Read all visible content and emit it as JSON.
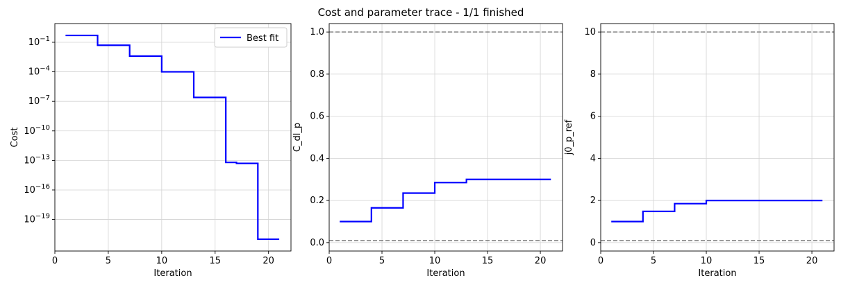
{
  "figure_title": "Cost and parameter trace - 1/1 finished",
  "chart_data": [
    {
      "type": "line",
      "step": true,
      "xlabel": "Iteration",
      "ylabel": "Cost",
      "yscale": "log",
      "xlim": [
        0,
        22.1
      ],
      "ylim_log10": [
        -22.2,
        0.9
      ],
      "xticks": [
        0,
        5,
        10,
        15,
        20
      ],
      "yticks_log10": [
        -1,
        -4,
        -7,
        -10,
        -13,
        -16,
        -19
      ],
      "grid": true,
      "legend": {
        "placement": "top-right",
        "entries": [
          "Best fit"
        ]
      },
      "series": [
        {
          "name": "Best fit",
          "color": "#0000ff",
          "x": [
            1,
            4,
            7,
            10,
            13,
            16,
            17,
            19,
            21
          ],
          "y_log10": [
            -0.3,
            -1.3,
            -2.4,
            -4.0,
            -6.6,
            -13.2,
            -13.3,
            -21.0,
            -21.0
          ]
        }
      ],
      "hlines": []
    },
    {
      "type": "line",
      "step": true,
      "xlabel": "Iteration",
      "ylabel": "C_dl_p",
      "yscale": "linear",
      "xlim": [
        0,
        22.1
      ],
      "ylim": [
        -0.04,
        1.04
      ],
      "xticks": [
        0,
        5,
        10,
        15,
        20
      ],
      "yticks": [
        0.0,
        0.2,
        0.4,
        0.6,
        0.8,
        1.0
      ],
      "ytick_decimals": 1,
      "grid": true,
      "series": [
        {
          "color": "#0000ff",
          "x": [
            1,
            4,
            7,
            10,
            13,
            21
          ],
          "y": [
            0.1,
            0.165,
            0.235,
            0.285,
            0.3,
            0.3
          ]
        }
      ],
      "hlines": [
        0.01,
        1.0
      ],
      "hline_color": "#808080"
    },
    {
      "type": "line",
      "step": true,
      "xlabel": "Iteration",
      "ylabel": "j0_p_ref",
      "yscale": "linear",
      "xlim": [
        0,
        22.1
      ],
      "ylim": [
        -0.4,
        10.4
      ],
      "xticks": [
        0,
        5,
        10,
        15,
        20
      ],
      "yticks": [
        0,
        2,
        4,
        6,
        8,
        10
      ],
      "ytick_decimals": 0,
      "grid": true,
      "series": [
        {
          "color": "#0000ff",
          "x": [
            1,
            4,
            7,
            10,
            21
          ],
          "y": [
            1.0,
            1.48,
            1.85,
            2.0,
            2.0
          ]
        }
      ],
      "hlines": [
        0.1,
        10.0
      ],
      "hline_color": "#808080"
    }
  ]
}
